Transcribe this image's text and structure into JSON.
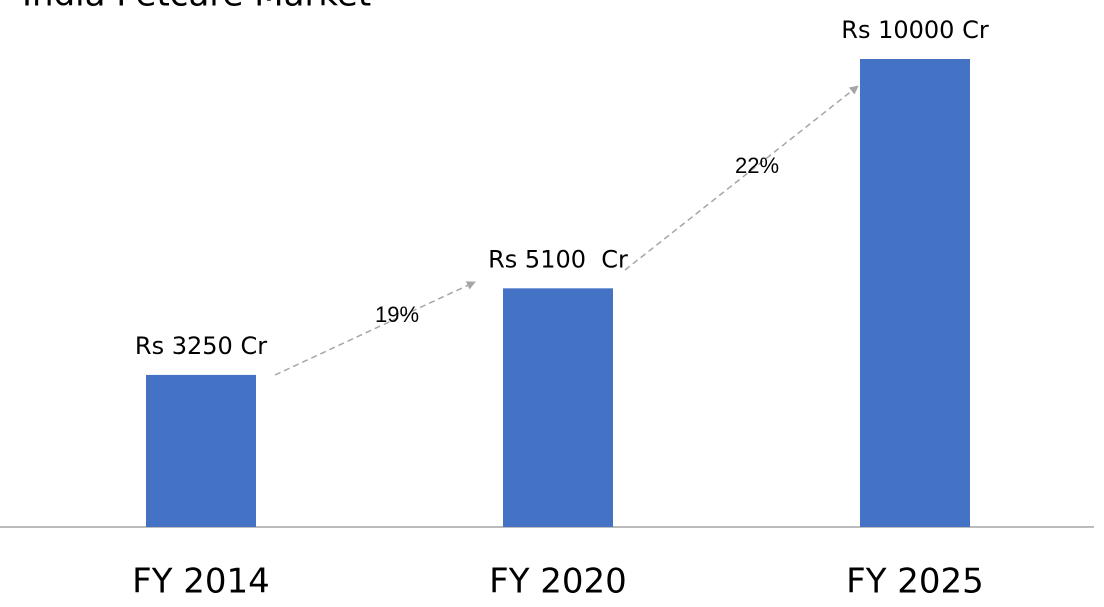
{
  "chart_data": {
    "type": "bar",
    "title": "India Petcare Market",
    "categories": [
      "FY 2014",
      "FY 2020",
      "FY 2025"
    ],
    "values": [
      3250,
      5100,
      10000
    ],
    "value_labels": [
      "Rs 3250 Cr",
      "Rs 5100  Cr",
      "Rs 10000 Cr"
    ],
    "annotations": [
      "19%",
      "22%"
    ],
    "color": "#4472c4"
  }
}
